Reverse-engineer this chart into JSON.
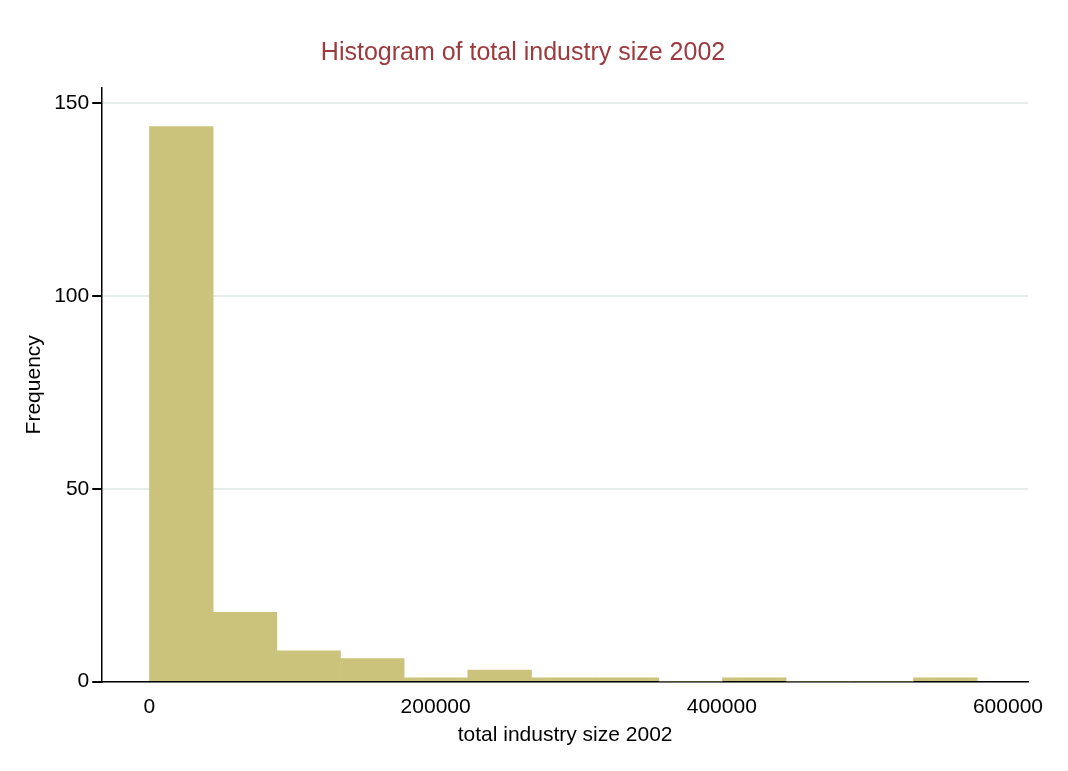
{
  "chart_data": {
    "type": "histogram",
    "title": "Histogram of total industry size 2002",
    "xlabel": "total industry size 2002",
    "ylabel": "Frequency",
    "bins": [
      0,
      44500,
      89000,
      133500,
      178000,
      222500,
      267000,
      311500,
      356000,
      400500,
      445000,
      489500,
      534000,
      578500
    ],
    "values": [
      144,
      18,
      8,
      6,
      1,
      3,
      1,
      1,
      0,
      1,
      0,
      0,
      1
    ],
    "color": "#cbc37c",
    "xlim": [
      -33000,
      614000
    ],
    "xticks": [
      0,
      200000,
      400000,
      600000
    ],
    "ylim": [
      0,
      154
    ],
    "yticks": [
      0,
      50,
      100,
      150
    ],
    "grid": "y",
    "legend": false
  }
}
